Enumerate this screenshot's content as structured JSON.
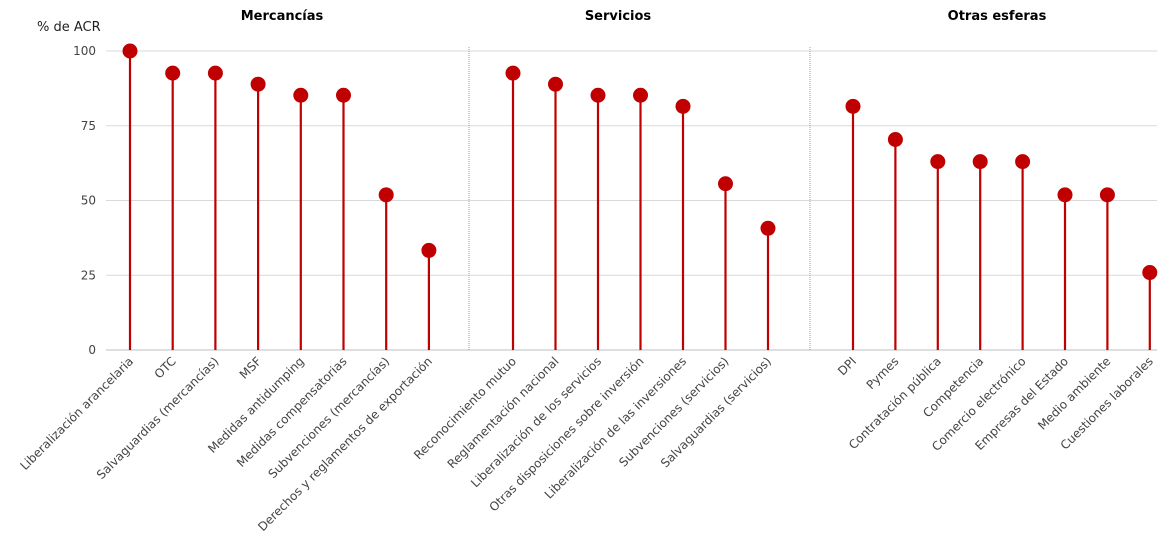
{
  "chart_data": {
    "type": "lollipop",
    "ylabel": "% de ACR",
    "ylim": [
      0,
      100
    ],
    "yticks": [
      0,
      25,
      50,
      75,
      100
    ],
    "grid": true,
    "color": "#c00000",
    "groups": [
      {
        "title": "Mercancías",
        "categories": [
          "Liberalización arancelaria",
          "OTC",
          "Salvaguardias (mercancías)",
          "MSF",
          "Medidas antidumping",
          "Medidas compensatorias",
          "Subvenciones (mercancías)",
          "Derechos y reglamentos de exportación"
        ],
        "values": [
          100,
          92.6,
          92.6,
          88.9,
          85.2,
          85.2,
          51.9,
          33.3
        ]
      },
      {
        "title": "Servicios",
        "categories": [
          "Reconocimiento mutuo",
          "Reglamentación nacional",
          "Liberalización de los servicios",
          "Otras disposiciones sobre inversión",
          "Liberalización de las inversiones",
          "Subvenciones (servicios)",
          "Salvaguardias (servicios)"
        ],
        "values": [
          92.6,
          88.9,
          85.2,
          85.2,
          81.5,
          55.6,
          40.7
        ]
      },
      {
        "title": "Otras esferas",
        "categories": [
          "DPI",
          "Pymes",
          "Contratación pública",
          "Competencia",
          "Comercio electrónico",
          "Empresas del Estado",
          "Medio ambiente",
          "Cuestiones laborales"
        ],
        "values": [
          81.5,
          70.4,
          63,
          63,
          63,
          51.9,
          51.9,
          25.9
        ]
      }
    ]
  }
}
